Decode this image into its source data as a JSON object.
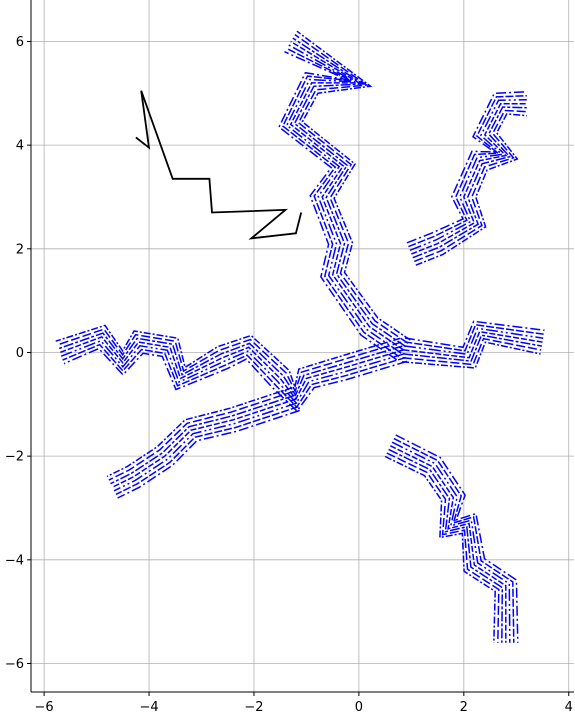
{
  "chart_data": {
    "type": "line",
    "title": "",
    "xlabel": "",
    "ylabel": "",
    "xlim": [
      -6.25,
      4.1
    ],
    "ylim": [
      -6.55,
      6.8
    ],
    "grid": true,
    "x_ticks": [
      -6,
      -4,
      -2,
      0,
      2,
      4
    ],
    "y_ticks": [
      -6,
      -4,
      -2,
      0,
      2,
      4,
      6
    ],
    "x_tick_labels": [
      "−6",
      "−4",
      "−2",
      "0",
      "2",
      "4"
    ],
    "y_tick_labels": [
      "−6",
      "−4",
      "−2",
      "0",
      "2",
      "4",
      "6"
    ],
    "colors": {
      "branches": "#0000ff",
      "path": "#000000",
      "grid": "#b0b0b0"
    },
    "branch_style": "bundles of parallel dashed and dash-dot lines",
    "branches": [
      {
        "id": "upper-trunk",
        "points": [
          [
            0.85,
            0.05
          ],
          [
            0.2,
            0.5
          ],
          [
            -0.5,
            1.5
          ],
          [
            -0.35,
            2.1
          ],
          [
            -0.7,
            3.0
          ],
          [
            -0.3,
            3.6
          ],
          [
            -1.3,
            4.4
          ],
          [
            -0.9,
            5.2
          ],
          [
            0.0,
            5.2
          ],
          [
            -1.3,
            6.0
          ]
        ]
      },
      {
        "id": "upper-right",
        "points": [
          [
            1.0,
            1.9
          ],
          [
            1.5,
            2.1
          ],
          [
            2.2,
            2.5
          ],
          [
            2.0,
            3.0
          ],
          [
            2.3,
            3.7
          ],
          [
            2.8,
            3.8
          ],
          [
            2.4,
            4.2
          ],
          [
            2.7,
            4.8
          ],
          [
            3.2,
            4.8
          ]
        ]
      },
      {
        "id": "left-arm",
        "points": [
          [
            0.85,
            0.05
          ],
          [
            -0.3,
            -0.3
          ],
          [
            -1.0,
            -0.5
          ],
          [
            -1.2,
            -0.9
          ],
          [
            -1.5,
            -0.5
          ],
          [
            -2.1,
            0.1
          ],
          [
            -2.6,
            -0.1
          ],
          [
            -3.4,
            -0.5
          ],
          [
            -3.6,
            0.1
          ],
          [
            -4.2,
            0.2
          ],
          [
            -4.5,
            -0.2
          ],
          [
            -4.9,
            0.3
          ],
          [
            -5.7,
            0.0
          ]
        ]
      },
      {
        "id": "lower-left-arm",
        "points": [
          [
            -1.2,
            -0.9
          ],
          [
            -2.4,
            -1.3
          ],
          [
            -3.2,
            -1.5
          ],
          [
            -3.7,
            -2.0
          ],
          [
            -4.3,
            -2.4
          ],
          [
            -4.7,
            -2.6
          ]
        ]
      },
      {
        "id": "right-arm",
        "points": [
          [
            0.85,
            0.05
          ],
          [
            2.1,
            -0.1
          ],
          [
            2.3,
            0.4
          ],
          [
            3.5,
            0.2
          ]
        ]
      },
      {
        "id": "lower-right-arm",
        "points": [
          [
            0.6,
            -1.8
          ],
          [
            1.4,
            -2.2
          ],
          [
            1.8,
            -2.8
          ],
          [
            1.7,
            -3.4
          ],
          [
            2.1,
            -3.3
          ],
          [
            2.2,
            -4.1
          ],
          [
            2.8,
            -4.5
          ],
          [
            2.8,
            -5.6
          ]
        ]
      }
    ],
    "path": {
      "id": "black-path",
      "points": [
        [
          -4.25,
          4.15
        ],
        [
          -4.0,
          3.95
        ],
        [
          -4.15,
          5.05
        ],
        [
          -3.55,
          3.35
        ],
        [
          -3.4,
          3.35
        ],
        [
          -2.85,
          3.35
        ],
        [
          -2.8,
          2.7
        ],
        [
          -1.4,
          2.75
        ],
        [
          -2.05,
          2.2
        ],
        [
          -1.2,
          2.3
        ],
        [
          -1.1,
          2.7
        ]
      ]
    }
  }
}
